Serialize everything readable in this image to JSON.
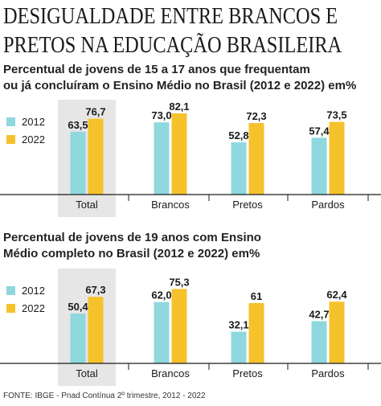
{
  "headline": {
    "line1": "DESIGUALDADE ENTRE BRANCOS E",
    "line2": "PRETOS NA EDUCAÇÃO BRASILEIRA"
  },
  "chart_data": [
    {
      "type": "bar",
      "title": "Percentual de jovens de 15 a 17 anos que frequentam ou já concluíram o Ensino Médio no Brasil (2012 e 2022) em%",
      "title_lines": [
        "Percentual de jovens de 15 a 17 anos que frequentam",
        "ou já concluíram o Ensino Médio no Brasil (2012 e 2022) em%"
      ],
      "categories": [
        "Total",
        "Brancos",
        "Pretos",
        "Pardos"
      ],
      "series": [
        {
          "name": "2012",
          "values": [
            63.5,
            73.0,
            52.8,
            57.4
          ]
        },
        {
          "name": "2022",
          "values": [
            76.7,
            82.1,
            72.3,
            73.5
          ]
        }
      ],
      "value_labels": [
        [
          "63,5",
          "73,0",
          "52,8",
          "57,4"
        ],
        [
          "76,7",
          "82,1",
          "72,3",
          "73,5"
        ]
      ],
      "xlabel": "",
      "ylabel": "",
      "ylim": [
        0,
        100
      ],
      "highlighted_category": "Total",
      "legend_position": "left",
      "grid": false
    },
    {
      "type": "bar",
      "title": "Percentual de jovens de 19 anos com Ensino Médio completo no Brasil (2012 e 2022) em%",
      "title_lines": [
        "Percentual de jovens de 19 anos com Ensino",
        "Médio completo no Brasil (2012 e 2022) em%"
      ],
      "categories": [
        "Total",
        "Brancos",
        "Pretos",
        "Pardos"
      ],
      "series": [
        {
          "name": "2012",
          "values": [
            50.4,
            62.0,
            32.1,
            42.7
          ]
        },
        {
          "name": "2022",
          "values": [
            67.3,
            75.3,
            61,
            62.4
          ]
        }
      ],
      "value_labels": [
        [
          "50,4",
          "62,0",
          "32,1",
          "42,7"
        ],
        [
          "67,3",
          "75,3",
          "61",
          "62,4"
        ]
      ],
      "xlabel": "",
      "ylabel": "",
      "ylim": [
        0,
        100
      ],
      "highlighted_category": "Total",
      "legend_position": "left",
      "grid": false
    }
  ],
  "colors": {
    "series_2012": "#8ed8de",
    "series_2022": "#f6c22c",
    "highlight_bg": "#e6e6e6",
    "axis": "#1a1a1a",
    "text": "#1a1a1a"
  },
  "source": "FONTE: IBGE - Pnad Contínua 2º trimestre, 2012 - 2022"
}
